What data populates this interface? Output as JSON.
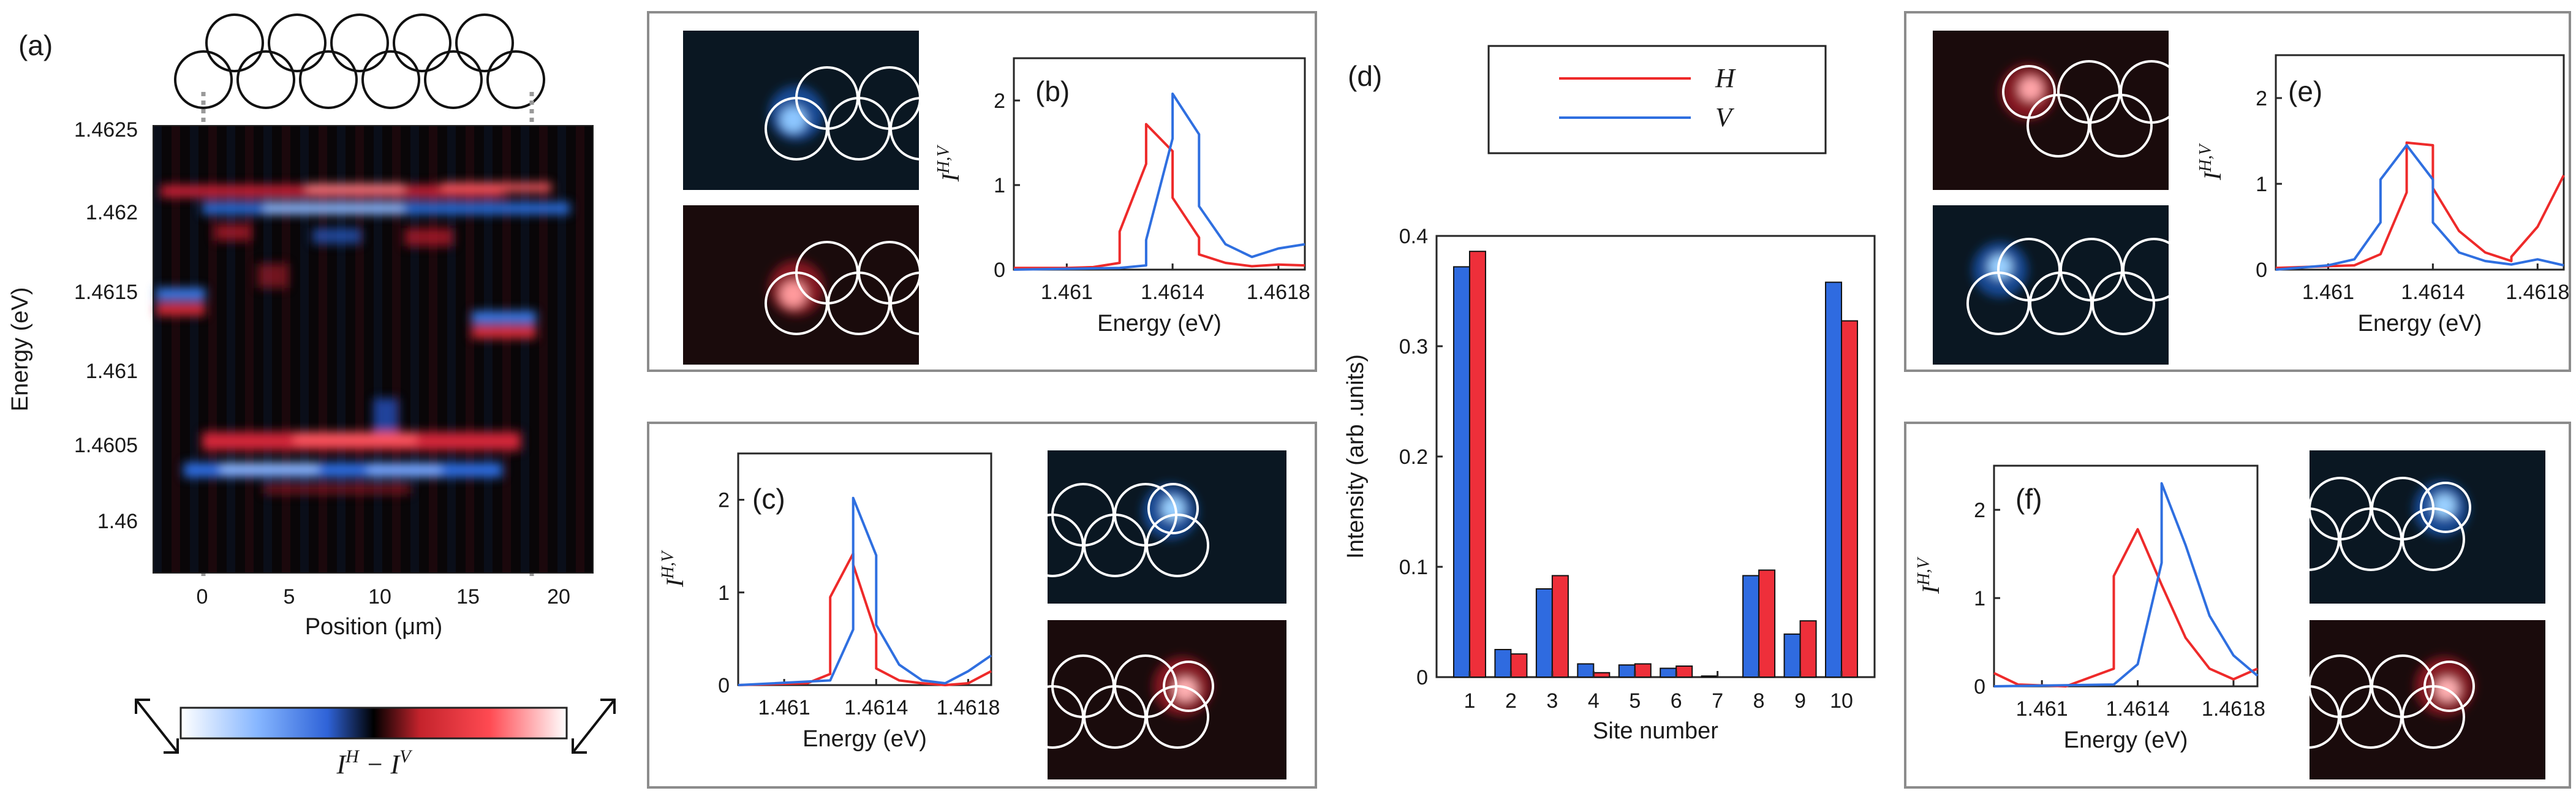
{
  "colors": {
    "H": "#ee2a2a",
    "V": "#2f6fe0",
    "bar_H": "#ee2f3a",
    "bar_V": "#2f6be0",
    "box": "#8c8c8c",
    "ring": "#ffffff"
  },
  "panel_labels": {
    "a": "(a)",
    "b": "(b)",
    "c": "(c)",
    "d": "(d)",
    "e": "(e)",
    "f": "(f)"
  },
  "map": {
    "ylabel": "Energy (eV)",
    "xlabel": "Position (μm)",
    "yticks": [
      "1.4625",
      "1.462",
      "1.4615",
      "1.461",
      "1.4605",
      "1.46"
    ],
    "xticks": [
      "0",
      "5",
      "10",
      "15",
      "20"
    ],
    "colorbar_label_main": "I",
    "colorbar_label_sup1": "H",
    "colorbar_label_mid": " − I",
    "colorbar_label_sup2": "V",
    "xlim": [
      -3,
      22
    ],
    "ylim": [
      1.45965,
      1.46275
    ]
  },
  "spectra_common": {
    "xlabel": "Energy (eV)",
    "ylabel_main": "I",
    "ylabel_sup": "H,V",
    "xticks": [
      "1.461",
      "1.4614",
      "1.4618"
    ],
    "yticks": [
      "0",
      "1",
      "2"
    ],
    "xlim": [
      1.4608,
      1.4619
    ],
    "ylim": [
      0,
      2.5
    ]
  },
  "legend": {
    "H": "H",
    "V": "V"
  },
  "bars": {
    "xlabel": "Site number",
    "ylabel": "Intensity (arb .units)",
    "yticks": [
      "0",
      "0.1",
      "0.2",
      "0.3",
      "0.4"
    ],
    "sites": [
      "1",
      "2",
      "3",
      "4",
      "5",
      "6",
      "7",
      "8",
      "9",
      "10"
    ]
  },
  "chart_data": [
    {
      "type": "heatmap",
      "panel": "(a)",
      "xlabel": "Position (μm)",
      "ylabel": "Energy (eV)",
      "xlim": [
        -3,
        22
      ],
      "ylim": [
        1.45965,
        1.46275
      ],
      "colorbar": "I^H − I^V",
      "features": [
        {
          "energy": 1.46211,
          "x_from": -0.5,
          "x_to": 19,
          "sign": "H"
        },
        {
          "energy": 1.46203,
          "x_from": -0.5,
          "x_to": 19,
          "sign": "V"
        },
        {
          "energy": 1.46191,
          "x_from": 0,
          "x_to": 18,
          "sign": "mixed"
        },
        {
          "energy": 1.4614,
          "x_from": -0.5,
          "x_to": 2.5,
          "sign": "V"
        },
        {
          "energy": 1.46132,
          "x_from": -0.5,
          "x_to": 2.5,
          "sign": "H"
        },
        {
          "energy": 1.46124,
          "x_from": 16,
          "x_to": 19,
          "sign": "V"
        },
        {
          "energy": 1.46116,
          "x_from": 16,
          "x_to": 19,
          "sign": "H"
        },
        {
          "energy": 1.46047,
          "x_from": 0,
          "x_to": 19,
          "sign": "H"
        },
        {
          "energy": 1.46028,
          "x_from": 0,
          "x_to": 19,
          "sign": "V"
        }
      ]
    },
    {
      "type": "line",
      "panel": "(b)",
      "xlim": [
        1.4608,
        1.4619
      ],
      "ylim": [
        0,
        2.5
      ],
      "xlabel": "Energy (eV)",
      "ylabel": "I^H,V",
      "series": [
        {
          "name": "H",
          "x": [
            1.4608,
            1.461,
            1.4611,
            1.4612,
            1.4612,
            1.4613,
            1.4613,
            1.4614,
            1.4614,
            1.4615,
            1.4615,
            1.4616,
            1.4617,
            1.4618,
            1.4619
          ],
          "y": [
            0.02,
            0.02,
            0.03,
            0.08,
            0.45,
            1.25,
            1.72,
            1.4,
            0.85,
            0.38,
            0.18,
            0.08,
            0.04,
            0.06,
            0.05
          ]
        },
        {
          "name": "V",
          "x": [
            1.4608,
            1.461,
            1.4612,
            1.4613,
            1.4613,
            1.4614,
            1.4614,
            1.4615,
            1.4615,
            1.4616,
            1.4617,
            1.4618,
            1.4619
          ],
          "y": [
            0.0,
            0.01,
            0.02,
            0.05,
            0.35,
            1.55,
            2.08,
            1.6,
            0.75,
            0.3,
            0.15,
            0.25,
            0.3
          ]
        }
      ]
    },
    {
      "type": "line",
      "panel": "(c)",
      "xlim": [
        1.4608,
        1.4619
      ],
      "ylim": [
        0,
        2.5
      ],
      "xlabel": "Energy (eV)",
      "ylabel": "I^H,V",
      "series": [
        {
          "name": "H",
          "x": [
            1.4608,
            1.4611,
            1.4612,
            1.4612,
            1.4613,
            1.4613,
            1.4614,
            1.4614,
            1.4615,
            1.4616,
            1.4617,
            1.4618,
            1.4619
          ],
          "y": [
            0.0,
            0.02,
            0.12,
            0.95,
            1.42,
            1.3,
            0.55,
            0.18,
            0.05,
            0.02,
            0.0,
            0.02,
            0.15
          ]
        },
        {
          "name": "V",
          "x": [
            1.4608,
            1.4612,
            1.4613,
            1.4613,
            1.4614,
            1.4614,
            1.4615,
            1.4616,
            1.4617,
            1.4618,
            1.4619
          ],
          "y": [
            0.0,
            0.05,
            0.6,
            2.02,
            1.4,
            0.65,
            0.22,
            0.05,
            0.02,
            0.15,
            0.32
          ]
        }
      ]
    },
    {
      "type": "bar",
      "panel": "(d)",
      "categories": [
        "1",
        "2",
        "3",
        "4",
        "5",
        "6",
        "7",
        "8",
        "9",
        "10"
      ],
      "xlabel": "Site number",
      "ylabel": "Intensity (arb .units)",
      "ylim": [
        0,
        0.4
      ],
      "series": [
        {
          "name": "V",
          "values": [
            0.372,
            0.025,
            0.08,
            0.012,
            0.011,
            0.008,
            0.001,
            0.092,
            0.039,
            0.358
          ]
        },
        {
          "name": "H",
          "values": [
            0.386,
            0.021,
            0.092,
            0.004,
            0.012,
            0.01,
            0.0,
            0.097,
            0.051,
            0.323
          ]
        }
      ],
      "legend": {
        "entries": [
          "H",
          "V"
        ],
        "placement": "top"
      }
    },
    {
      "type": "line",
      "panel": "(e)",
      "xlim": [
        1.4608,
        1.4619
      ],
      "ylim": [
        0,
        2.5
      ],
      "xlabel": "Energy (eV)",
      "ylabel": "I^H,V",
      "series": [
        {
          "name": "H",
          "x": [
            1.4608,
            1.4611,
            1.4612,
            1.4613,
            1.4613,
            1.4614,
            1.4614,
            1.4615,
            1.4616,
            1.4617,
            1.4617,
            1.4618,
            1.4619
          ],
          "y": [
            0.02,
            0.05,
            0.18,
            0.9,
            1.48,
            1.45,
            0.95,
            0.45,
            0.2,
            0.1,
            0.15,
            0.5,
            1.1
          ]
        },
        {
          "name": "V",
          "x": [
            1.4608,
            1.461,
            1.4611,
            1.4612,
            1.4612,
            1.4613,
            1.4614,
            1.4614,
            1.4615,
            1.4616,
            1.4617,
            1.4618,
            1.4619
          ],
          "y": [
            0.0,
            0.05,
            0.12,
            0.55,
            1.05,
            1.45,
            1.05,
            0.55,
            0.2,
            0.1,
            0.06,
            0.12,
            0.05
          ]
        }
      ]
    },
    {
      "type": "line",
      "panel": "(f)",
      "xlim": [
        1.4608,
        1.4619
      ],
      "ylim": [
        0,
        2.5
      ],
      "xlabel": "Energy (eV)",
      "ylabel": "I^H,V",
      "series": [
        {
          "name": "H",
          "x": [
            1.4608,
            1.4609,
            1.4611,
            1.4613,
            1.4613,
            1.4614,
            1.4615,
            1.4616,
            1.4617,
            1.4618,
            1.4619
          ],
          "y": [
            0.15,
            0.02,
            0.0,
            0.2,
            1.25,
            1.78,
            1.15,
            0.55,
            0.2,
            0.08,
            0.2
          ]
        },
        {
          "name": "V",
          "x": [
            1.4608,
            1.4613,
            1.4614,
            1.4615,
            1.4615,
            1.4616,
            1.4617,
            1.4618,
            1.4619
          ],
          "y": [
            0.0,
            0.02,
            0.25,
            1.4,
            2.3,
            1.6,
            0.8,
            0.35,
            0.12
          ]
        }
      ]
    }
  ]
}
